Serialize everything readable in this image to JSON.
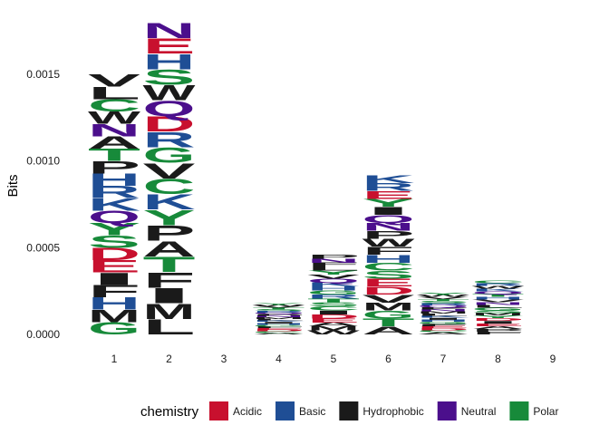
{
  "chart_data": {
    "type": "sequence-logo",
    "ylabel": "Bits",
    "ylim": [
      0,
      0.00186
    ],
    "y_ticks": [
      "0.0000",
      "0.0005",
      "0.0010",
      "0.0015"
    ],
    "y_tick_values": [
      0,
      0.0005,
      0.001,
      0.0015
    ],
    "x_ticks": [
      "1",
      "2",
      "3",
      "4",
      "5",
      "6",
      "7",
      "8",
      "9"
    ],
    "grid": false,
    "legend": {
      "title": "chemistry",
      "placement": "bottom",
      "items": [
        {
          "label": "Acidic",
          "color": "#C8102E"
        },
        {
          "label": "Basic",
          "color": "#1F4E95"
        },
        {
          "label": "Hydrophobic",
          "color": "#1A1A1A"
        },
        {
          "label": "Neutral",
          "color": "#4B0F8C"
        },
        {
          "label": "Polar",
          "color": "#178A3A"
        }
      ]
    },
    "colors": {
      "Acidic": "#C8102E",
      "Basic": "#1F4E95",
      "Hydrophobic": "#1A1A1A",
      "Neutral": "#4B0F8C",
      "Polar": "#178A3A"
    },
    "positions": [
      {
        "position": 1,
        "total_bits": 0.0015,
        "letters": [
          "G",
          "M",
          "H",
          "F",
          "I",
          "E",
          "D",
          "S",
          "Y",
          "Q",
          "K",
          "R",
          "H",
          "P",
          "T",
          "A",
          "N",
          "W",
          "C",
          "L",
          "V"
        ],
        "chemistry": [
          "Polar",
          "Hydrophobic",
          "Basic",
          "Hydrophobic",
          "Hydrophobic",
          "Acidic",
          "Acidic",
          "Polar",
          "Polar",
          "Neutral",
          "Basic",
          "Basic",
          "Basic",
          "Hydrophobic",
          "Polar",
          "Hydrophobic",
          "Neutral",
          "Hydrophobic",
          "Polar",
          "Hydrophobic",
          "Hydrophobic"
        ]
      },
      {
        "position": 2,
        "total_bits": 0.0018,
        "letters": [
          "L",
          "M",
          "I",
          "F",
          "T",
          "A",
          "P",
          "Y",
          "K",
          "C",
          "V",
          "G",
          "R",
          "D",
          "Q",
          "W",
          "S",
          "H",
          "E",
          "N"
        ],
        "chemistry": [
          "Hydrophobic",
          "Hydrophobic",
          "Hydrophobic",
          "Hydrophobic",
          "Polar",
          "Hydrophobic",
          "Hydrophobic",
          "Polar",
          "Basic",
          "Polar",
          "Hydrophobic",
          "Polar",
          "Basic",
          "Acidic",
          "Neutral",
          "Hydrophobic",
          "Polar",
          "Basic",
          "Acidic",
          "Neutral"
        ]
      },
      {
        "position": 3,
        "total_bits": 0,
        "letters": [],
        "chemistry": []
      },
      {
        "position": 4,
        "total_bits": 0.00018,
        "letters": [
          "A",
          "C",
          "D",
          "E",
          "F",
          "G",
          "H",
          "I",
          "K",
          "L",
          "M",
          "N",
          "P",
          "Q",
          "R",
          "S",
          "T",
          "V",
          "W",
          "Y"
        ],
        "chemistry": [
          "Hydrophobic",
          "Polar",
          "Acidic",
          "Acidic",
          "Hydrophobic",
          "Polar",
          "Basic",
          "Hydrophobic",
          "Basic",
          "Hydrophobic",
          "Hydrophobic",
          "Neutral",
          "Hydrophobic",
          "Neutral",
          "Basic",
          "Polar",
          "Polar",
          "Hydrophobic",
          "Hydrophobic",
          "Polar"
        ]
      },
      {
        "position": 5,
        "total_bits": 0.00046,
        "letters": [
          "W",
          "M",
          "A",
          "E",
          "D",
          "I",
          "C",
          "S",
          "T",
          "R",
          "G",
          "H",
          "K",
          "Q",
          "V",
          "Y",
          "L",
          "F",
          "N",
          "P"
        ],
        "chemistry": [
          "Hydrophobic",
          "Hydrophobic",
          "Hydrophobic",
          "Acidic",
          "Acidic",
          "Hydrophobic",
          "Polar",
          "Polar",
          "Polar",
          "Basic",
          "Polar",
          "Basic",
          "Basic",
          "Neutral",
          "Hydrophobic",
          "Polar",
          "Hydrophobic",
          "Hydrophobic",
          "Neutral",
          "Hydrophobic"
        ]
      },
      {
        "position": 6,
        "total_bits": 0.00092,
        "letters": [
          "A",
          "T",
          "G",
          "M",
          "V",
          "D",
          "E",
          "S",
          "C",
          "H",
          "F",
          "W",
          "P",
          "N",
          "Q",
          "I",
          "Y",
          "E",
          "R",
          "K"
        ],
        "chemistry": [
          "Hydrophobic",
          "Polar",
          "Polar",
          "Hydrophobic",
          "Hydrophobic",
          "Acidic",
          "Acidic",
          "Polar",
          "Polar",
          "Basic",
          "Hydrophobic",
          "Hydrophobic",
          "Hydrophobic",
          "Neutral",
          "Neutral",
          "Hydrophobic",
          "Polar",
          "Acidic",
          "Basic",
          "Basic"
        ]
      },
      {
        "position": 7,
        "total_bits": 0.00024,
        "letters": [
          "A",
          "C",
          "D",
          "E",
          "F",
          "G",
          "H",
          "I",
          "K",
          "L",
          "M",
          "N",
          "P",
          "Q",
          "R",
          "S",
          "T",
          "V",
          "W",
          "Y"
        ],
        "chemistry": [
          "Hydrophobic",
          "Polar",
          "Acidic",
          "Acidic",
          "Hydrophobic",
          "Polar",
          "Basic",
          "Hydrophobic",
          "Basic",
          "Hydrophobic",
          "Hydrophobic",
          "Neutral",
          "Hydrophobic",
          "Neutral",
          "Basic",
          "Polar",
          "Polar",
          "Hydrophobic",
          "Hydrophobic",
          "Polar"
        ]
      },
      {
        "position": 8,
        "total_bits": 0.00031,
        "letters": [
          "F",
          "P",
          "A",
          "E",
          "I",
          "D",
          "Y",
          "M",
          "S",
          "G",
          "L",
          "N",
          "V",
          "H",
          "T",
          "Q",
          "K",
          "W",
          "R",
          "C"
        ],
        "chemistry": [
          "Hydrophobic",
          "Hydrophobic",
          "Hydrophobic",
          "Acidic",
          "Hydrophobic",
          "Acidic",
          "Polar",
          "Hydrophobic",
          "Polar",
          "Polar",
          "Hydrophobic",
          "Neutral",
          "Hydrophobic",
          "Basic",
          "Polar",
          "Neutral",
          "Basic",
          "Hydrophobic",
          "Basic",
          "Polar"
        ]
      },
      {
        "position": 9,
        "total_bits": 0,
        "letters": [],
        "chemistry": []
      }
    ]
  }
}
